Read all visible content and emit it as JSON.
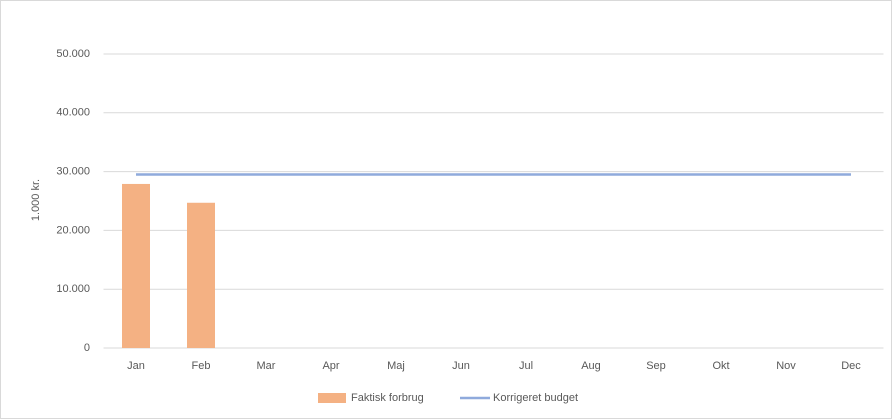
{
  "chart_data": {
    "type": "combo",
    "categories": [
      "Jan",
      "Feb",
      "Mar",
      "Apr",
      "Maj",
      "Jun",
      "Jul",
      "Aug",
      "Sep",
      "Okt",
      "Nov",
      "Dec"
    ],
    "series": [
      {
        "name": "Faktisk forbrug",
        "type": "bar",
        "color": "#f4b183",
        "values": [
          27900,
          24700,
          null,
          null,
          null,
          null,
          null,
          null,
          null,
          null,
          null,
          null
        ]
      },
      {
        "name": "Korrigeret budget",
        "type": "line",
        "color": "#8faadc",
        "values": [
          29500,
          29500,
          29500,
          29500,
          29500,
          29500,
          29500,
          29500,
          29500,
          29500,
          29500,
          29500
        ]
      }
    ],
    "ylabel": "1.000 kr.",
    "ylim": [
      0,
      50000
    ],
    "yticks": [
      0,
      {
        "value": 10000,
        "label": "10.000"
      },
      {
        "value": 20000,
        "label": "20.000"
      },
      {
        "value": 30000,
        "label": "30.000"
      },
      {
        "value": 40000,
        "label": "40.000"
      },
      {
        "value": 50000,
        "label": "50.000"
      }
    ],
    "grid": true,
    "legend": "bottom"
  }
}
